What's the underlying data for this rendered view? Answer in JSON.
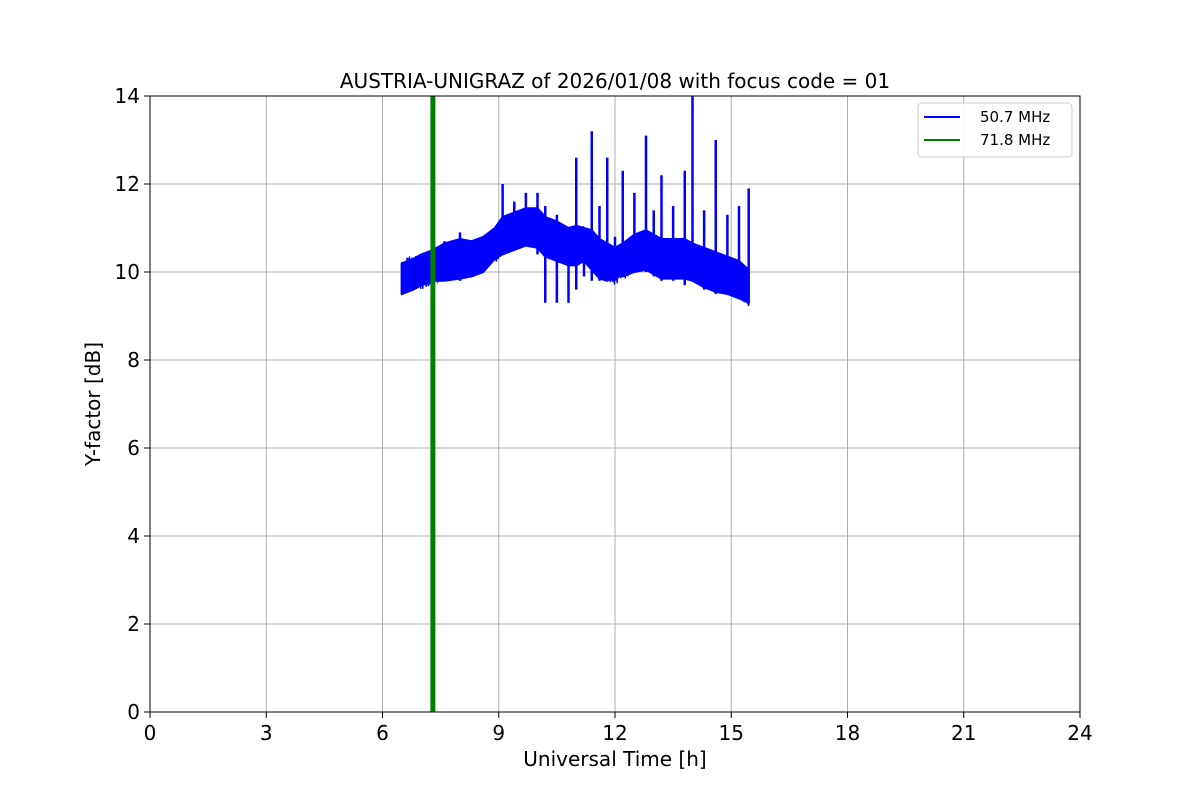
{
  "chart_data": {
    "type": "line",
    "title": "AUSTRIA-UNIGRAZ of 2026/01/08 with focus code = 01",
    "xlabel": "Universal Time [h]",
    "ylabel": "Y-factor [dB]",
    "xlim": [
      0,
      24
    ],
    "ylim": [
      0,
      14
    ],
    "xticks": [
      "0",
      "3",
      "6",
      "9",
      "12",
      "15",
      "18",
      "21",
      "24"
    ],
    "yticks": [
      "0",
      "2",
      "4",
      "6",
      "8",
      "10",
      "12",
      "14"
    ],
    "grid": true,
    "legend_position": "top-right",
    "series": [
      {
        "name": "50.7 MHz",
        "color": "#0000ff",
        "x": [
          6.5,
          6.8,
          7.0,
          7.3,
          7.6,
          8.0,
          8.3,
          8.6,
          8.9,
          9.1,
          9.4,
          9.7,
          10.0,
          10.2,
          10.5,
          10.8,
          11.0,
          11.2,
          11.4,
          11.6,
          11.8,
          12.0,
          12.2,
          12.5,
          12.8,
          13.0,
          13.2,
          13.5,
          13.8,
          14.0,
          14.3,
          14.6,
          14.9,
          15.2,
          15.45
        ],
        "y": [
          9.9,
          10.0,
          10.0,
          10.1,
          10.2,
          10.3,
          10.3,
          10.4,
          10.6,
          10.8,
          10.9,
          11.0,
          11.0,
          10.8,
          10.7,
          10.6,
          10.6,
          10.7,
          10.5,
          10.3,
          10.2,
          10.1,
          10.2,
          10.4,
          10.5,
          10.4,
          10.3,
          10.3,
          10.3,
          10.2,
          10.1,
          10.0,
          9.9,
          9.8,
          9.6
        ],
        "lower": [
          9.5,
          9.6,
          9.7,
          9.8,
          9.8,
          9.8,
          9.9,
          10.0,
          10.3,
          10.4,
          10.5,
          10.6,
          10.4,
          9.3,
          9.3,
          9.3,
          9.6,
          9.9,
          9.8,
          9.8,
          9.8,
          9.9,
          9.9,
          10.0,
          10.0,
          9.9,
          9.8,
          9.8,
          9.7,
          9.8,
          9.6,
          9.5,
          9.5,
          9.4,
          9.3
        ],
        "upper": [
          10.2,
          10.3,
          10.4,
          10.5,
          10.7,
          10.9,
          10.7,
          10.8,
          11.0,
          12.0,
          11.6,
          11.8,
          11.8,
          11.5,
          11.3,
          11.0,
          12.6,
          11.0,
          13.2,
          11.5,
          12.6,
          10.8,
          12.3,
          11.8,
          13.1,
          11.4,
          12.2,
          11.5,
          12.3,
          14.0,
          11.4,
          13.0,
          11.3,
          11.5,
          11.9
        ]
      },
      {
        "name": "71.8 MHz",
        "color": "#008000",
        "x": [
          7.3,
          7.3
        ],
        "y": [
          0,
          14
        ]
      }
    ]
  }
}
